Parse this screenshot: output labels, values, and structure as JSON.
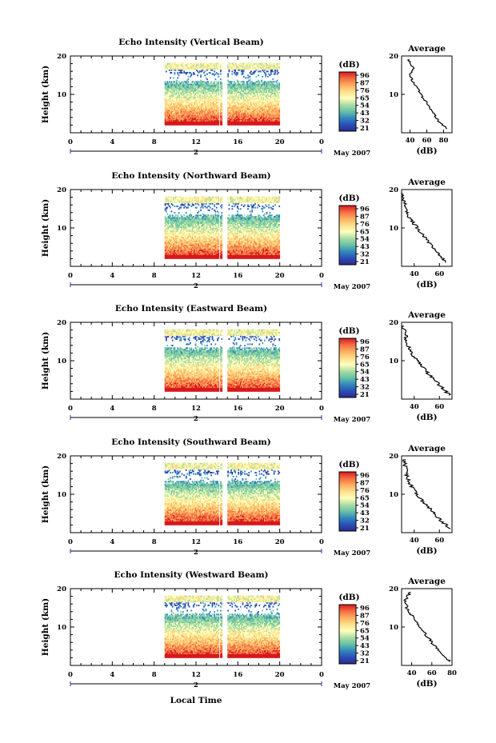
{
  "shared": {
    "height_label": "Height (km)",
    "colorbar_unit": "(dB)",
    "colorbar_ticks": [
      "96",
      "87",
      "76",
      "65",
      "54",
      "43",
      "32",
      "21"
    ],
    "colorbar_colors": [
      "#d7191c",
      "#f46d43",
      "#fdae61",
      "#fee08b",
      "#ffffbf",
      "#abdda4",
      "#66c2a5",
      "#3288bd",
      "#2b4fb8",
      "#2c2a8c"
    ],
    "time_ticks": [
      "0",
      "4",
      "8",
      "12",
      "16",
      "20",
      "0"
    ],
    "date_day": "2",
    "date_label": "May 2007",
    "height_ticks": [
      "20",
      "10"
    ],
    "avg_title": "Average",
    "avg_xlabel": "(dB)",
    "xlabel": "Local Time"
  },
  "chart_data": [
    {
      "type": "heatmap",
      "title": "Echo Intensity (Vertical Beam)",
      "ylabel": "Height (km)",
      "ylim": [
        0,
        20
      ],
      "x_range_hours": [
        0,
        24
      ],
      "data_window_hours": [
        9,
        20
      ],
      "missing_hours": [
        14.5,
        15.0
      ],
      "colorbar_label": "(dB)",
      "average_profile": {
        "title": "Average",
        "xlabel": "(dB)",
        "xticks": [
          "40",
          "60",
          "80"
        ],
        "xlim": [
          30,
          90
        ],
        "heights": [
          1,
          3,
          5,
          7,
          9,
          11,
          13,
          15,
          17,
          19
        ],
        "values": [
          84,
          74,
          68,
          62,
          56,
          50,
          44,
          40,
          44,
          38
        ]
      }
    },
    {
      "type": "heatmap",
      "title": "Echo Intensity (Northward Beam)",
      "ylabel": "Height (km)",
      "ylim": [
        0,
        20
      ],
      "x_range_hours": [
        0,
        24
      ],
      "data_window_hours": [
        9,
        20
      ],
      "missing_hours": [
        14.5,
        15.0
      ],
      "colorbar_label": "(dB)",
      "average_profile": {
        "title": "Average",
        "xlabel": "(dB)",
        "xticks": [
          "40",
          "60"
        ],
        "xlim": [
          30,
          70
        ],
        "heights": [
          1,
          3,
          5,
          7,
          9,
          11,
          13,
          15,
          17,
          19
        ],
        "values": [
          66,
          60,
          55,
          50,
          45,
          40,
          36,
          33,
          32,
          30
        ]
      }
    },
    {
      "type": "heatmap",
      "title": "Echo Intensity (Eastward Beam)",
      "ylabel": "Height (km)",
      "ylim": [
        0,
        20
      ],
      "x_range_hours": [
        0,
        24
      ],
      "data_window_hours": [
        9,
        20
      ],
      "missing_hours": [
        14.5,
        15.0
      ],
      "colorbar_label": "(dB)",
      "average_profile": {
        "title": "Average",
        "xlabel": "(dB)",
        "xticks": [
          "40",
          "60"
        ],
        "xlim": [
          30,
          70
        ],
        "heights": [
          1,
          3,
          5,
          7,
          9,
          11,
          13,
          15,
          17,
          19
        ],
        "values": [
          68,
          62,
          56,
          50,
          45,
          40,
          36,
          34,
          33,
          31
        ]
      }
    },
    {
      "type": "heatmap",
      "title": "Echo Intensity (Southward Beam)",
      "ylabel": "Height (km)",
      "ylim": [
        0,
        20
      ],
      "x_range_hours": [
        0,
        24
      ],
      "data_window_hours": [
        9,
        20
      ],
      "missing_hours": [
        14.5,
        15.0
      ],
      "colorbar_label": "(dB)",
      "average_profile": {
        "title": "Average",
        "xlabel": "(dB)",
        "xticks": [
          "40",
          "60"
        ],
        "xlim": [
          30,
          70
        ],
        "heights": [
          1,
          3,
          5,
          7,
          9,
          11,
          13,
          15,
          17,
          19
        ],
        "values": [
          68,
          62,
          56,
          50,
          45,
          40,
          36,
          34,
          33,
          32
        ]
      }
    },
    {
      "type": "heatmap",
      "title": "Echo Intensity (Westward Beam)",
      "ylabel": "Height (km)",
      "ylim": [
        0,
        20
      ],
      "x_range_hours": [
        0,
        24
      ],
      "data_window_hours": [
        9,
        20
      ],
      "missing_hours": [
        14.5,
        15.0
      ],
      "colorbar_label": "(dB)",
      "average_profile": {
        "title": "Average",
        "xlabel": "(dB)",
        "xticks": [
          "40",
          "60",
          "80"
        ],
        "xlim": [
          30,
          80
        ],
        "heights": [
          1,
          3,
          5,
          7,
          9,
          11,
          13,
          15,
          17,
          19
        ],
        "values": [
          78,
          70,
          63,
          57,
          51,
          45,
          40,
          35,
          34,
          38
        ]
      }
    }
  ]
}
